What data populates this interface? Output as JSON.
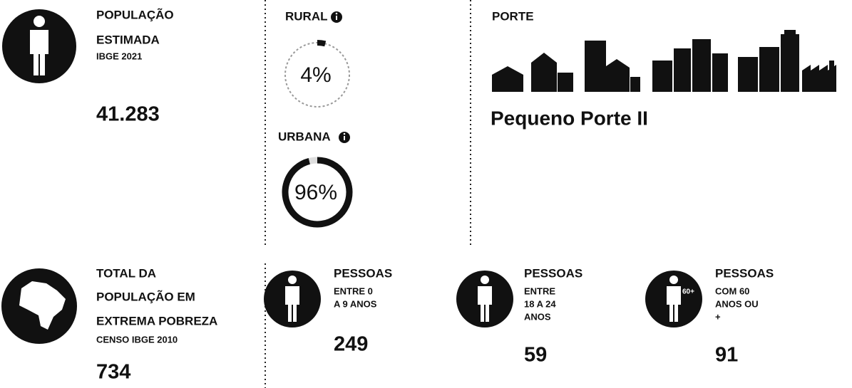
{
  "populacao": {
    "title_1": "POPULAÇÃO",
    "title_2": "ESTIMADA",
    "source": "IBGE 2021",
    "value": "41.283"
  },
  "rural": {
    "label": "RURAL",
    "value": 4,
    "value_label": "4%"
  },
  "urbana": {
    "label": "URBANA",
    "value": 96,
    "value_label": "96%"
  },
  "porte": {
    "label": "PORTE",
    "value": "Pequeno Porte II"
  },
  "pobreza": {
    "title_1": "TOTAL DA",
    "title_2": "POPULAÇÃO EM",
    "title_3": "EXTREMA POBREZA",
    "source": "CENSO IBGE 2010",
    "value": "734"
  },
  "groups": [
    {
      "title": "PESSOAS",
      "lines": [
        "ENTRE 0",
        "A 9 ANOS"
      ],
      "value": "249"
    },
    {
      "title": "PESSOAS",
      "lines": [
        "ENTRE",
        "18 A 24",
        "ANOS"
      ],
      "value": "59"
    },
    {
      "title": "PESSOAS",
      "lines": [
        "COM 60",
        "ANOS OU",
        "+"
      ],
      "value": "91",
      "badge": "60+"
    }
  ]
}
